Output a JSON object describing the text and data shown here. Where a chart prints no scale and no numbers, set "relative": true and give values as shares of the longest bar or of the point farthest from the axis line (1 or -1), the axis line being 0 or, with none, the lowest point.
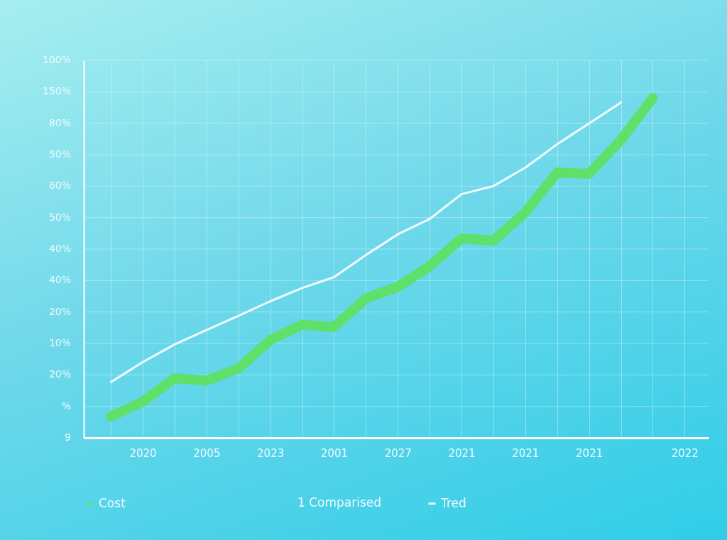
{
  "chart_data": {
    "type": "line",
    "relative": true,
    "categories": [
      null,
      "2020",
      null,
      "2005",
      null,
      "2023",
      null,
      "2001",
      null,
      "2027",
      null,
      "2021",
      null,
      "2021",
      null,
      "2021",
      null,
      null,
      "2022"
    ],
    "series": [
      {
        "name": "Cost",
        "color": "#5ee06a",
        "values": [
          0.063,
          0.106,
          0.175,
          0.168,
          0.204,
          0.288,
          0.333,
          0.326,
          0.41,
          0.444,
          0.505,
          0.587,
          0.58,
          0.663,
          0.781,
          0.777,
          0.876,
          1.0,
          null
        ]
      },
      {
        "name": "Tred",
        "color": "#f0fbff",
        "values": [
          0.164,
          0.223,
          0.275,
          0.317,
          0.359,
          0.402,
          0.441,
          0.473,
          0.538,
          0.599,
          0.644,
          0.717,
          0.741,
          0.795,
          0.864,
          0.925,
          0.987,
          null,
          null
        ]
      }
    ],
    "annotations": [
      "1 Comparised",
      "9",
      "%",
      "20%",
      "10%",
      "20%",
      "40%",
      "40%",
      "50%",
      "60%",
      "50%",
      "80%",
      "150%",
      "100%"
    ],
    "grid": true,
    "legend": "bottom"
  }
}
